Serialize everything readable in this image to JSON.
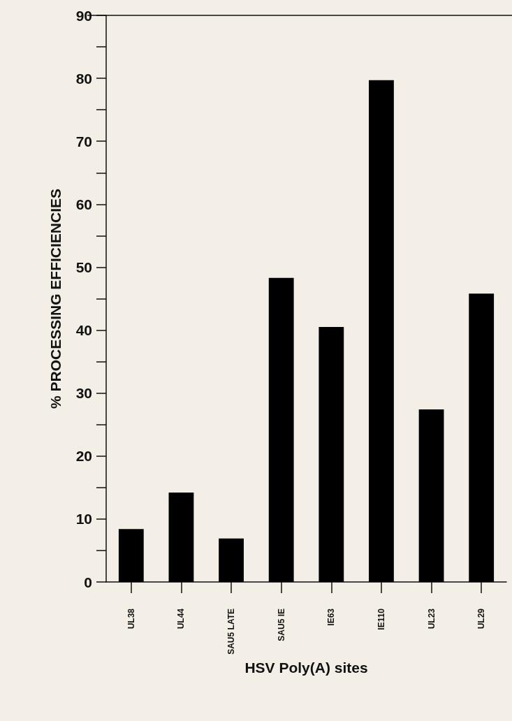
{
  "chart_data": {
    "type": "bar",
    "xlabel": "HSV Poly(A) sites",
    "ylabel": "% PROCESSING EFFICIENCIES",
    "categories": [
      "UL38",
      "UL44",
      "SAU5 LATE",
      "SAU5 IE",
      "IE63",
      "IE110",
      "UL23",
      "UL29"
    ],
    "values": [
      8.4,
      14.2,
      6.9,
      48.3,
      40.5,
      79.7,
      27.4,
      45.8
    ],
    "color": "#000000",
    "ylim": [
      0,
      90
    ],
    "yticks": [
      0,
      {
        "value": 5,
        "label": null
      },
      10,
      {
        "value": 15,
        "label": null
      },
      20,
      {
        "value": 25,
        "label": null
      },
      30,
      {
        "value": 35,
        "label": null
      },
      40,
      {
        "value": 45,
        "label": null
      },
      50,
      {
        "value": 55,
        "label": null
      },
      60,
      {
        "value": 65,
        "label": null
      },
      70,
      {
        "value": 75,
        "label": null
      },
      80,
      {
        "value": 85,
        "label": null
      },
      90
    ],
    "grid": false
  }
}
